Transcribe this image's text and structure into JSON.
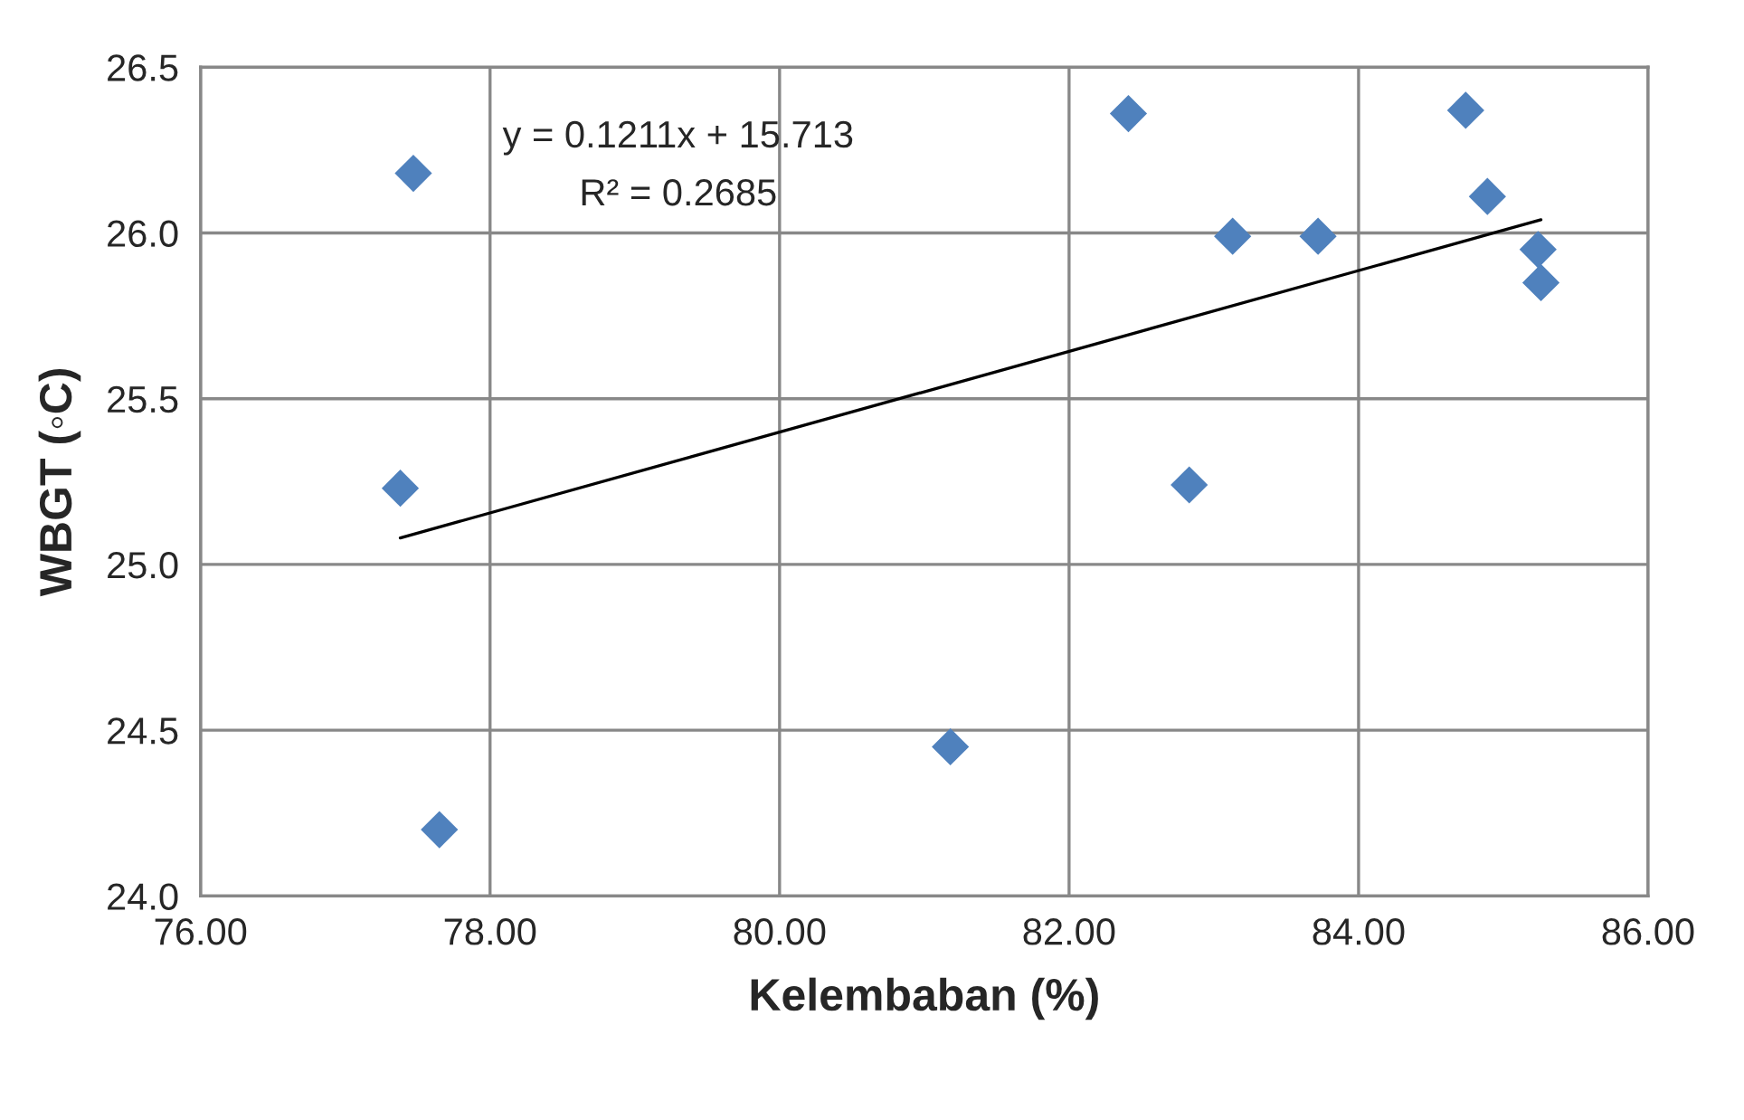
{
  "chart_data": {
    "type": "scatter",
    "xlabel": "Kelembaban (%)",
    "ylabel": "WBGT (◦C)",
    "xlim": [
      76,
      86
    ],
    "ylim": [
      24,
      26.5
    ],
    "xticks": [
      {
        "value": 76,
        "label": "76.00"
      },
      {
        "value": 78,
        "label": "78.00"
      },
      {
        "value": 80,
        "label": "80.00"
      },
      {
        "value": 82,
        "label": "82.00"
      },
      {
        "value": 84,
        "label": "84.00"
      },
      {
        "value": 86,
        "label": "86.00"
      }
    ],
    "yticks": [
      {
        "value": 24,
        "label": "24.0"
      },
      {
        "value": 24.5,
        "label": "24.5"
      },
      {
        "value": 25,
        "label": "25.0"
      },
      {
        "value": 25.5,
        "label": "25.5"
      },
      {
        "value": 26,
        "label": "26.0"
      },
      {
        "value": 26.5,
        "label": "26.5"
      }
    ],
    "grid": true,
    "annotations": [
      "y = 0.1211x + 15.713",
      "R² = 0.2685"
    ],
    "series": [
      {
        "type": "scatter",
        "color": "#4f81bd",
        "marker": "diamond",
        "x": [
          77.47,
          77.38,
          77.65,
          81.18,
          82.41,
          82.83,
          83.13,
          83.72,
          84.74,
          84.89,
          85.24,
          85.26
        ],
        "values": [
          26.18,
          25.23,
          24.2,
          24.45,
          26.36,
          25.24,
          25.99,
          25.99,
          26.37,
          26.11,
          25.95,
          25.85
        ]
      },
      {
        "type": "line",
        "color": "#000000",
        "marker": "none",
        "line_style": "solid",
        "x": [
          77.38,
          85.26
        ],
        "values": [
          25.08,
          26.04
        ]
      }
    ]
  }
}
